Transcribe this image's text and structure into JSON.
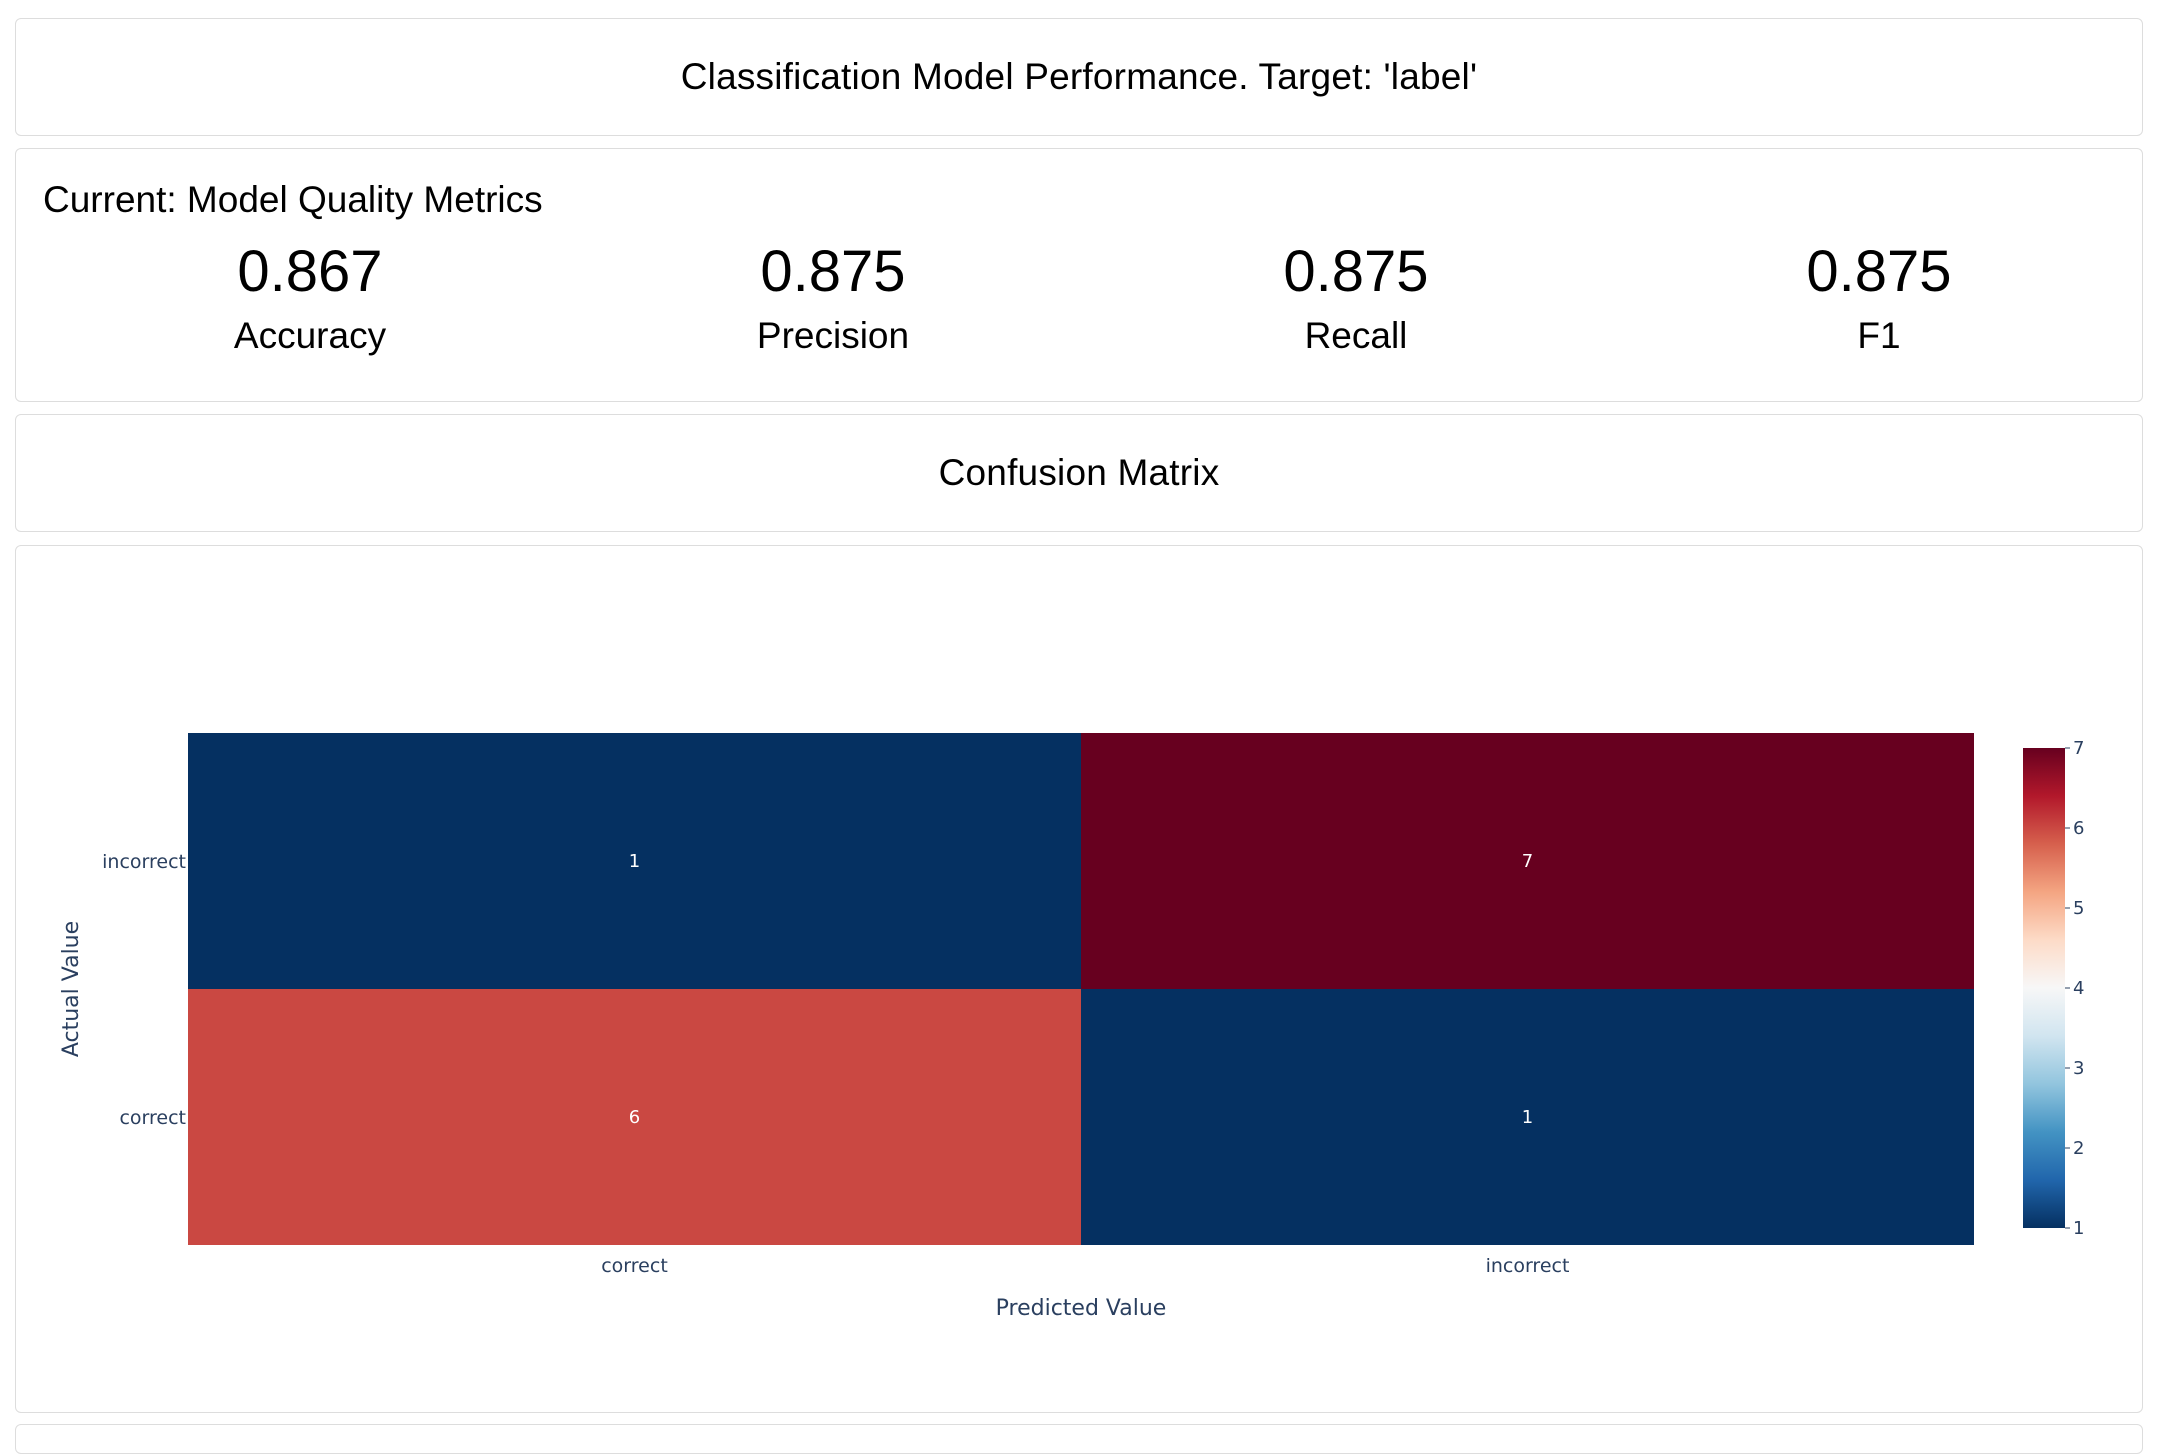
{
  "header": {
    "title": "Classification Model Performance. Target: 'label'"
  },
  "metrics": {
    "heading": "Current: Model Quality Metrics",
    "items": [
      {
        "value": "0.867",
        "label": "Accuracy"
      },
      {
        "value": "0.875",
        "label": "Precision"
      },
      {
        "value": "0.875",
        "label": "Recall"
      },
      {
        "value": "0.875",
        "label": "F1"
      }
    ]
  },
  "confusion": {
    "title": "Confusion Matrix"
  },
  "chart_data": {
    "type": "heatmap",
    "x_categories": [
      "correct",
      "incorrect"
    ],
    "y_categories": [
      "correct",
      "incorrect"
    ],
    "z": [
      [
        6,
        1
      ],
      [
        1,
        7
      ]
    ],
    "xlabel": "Predicted Value",
    "ylabel": "Actual Value",
    "colorscale": "RdBu_r",
    "zmin": 1,
    "zmax": 7,
    "colorbar_ticks": [
      1,
      2,
      3,
      4,
      5,
      6,
      7
    ],
    "colors": {
      "axis_text": "#2a3f5f"
    }
  }
}
